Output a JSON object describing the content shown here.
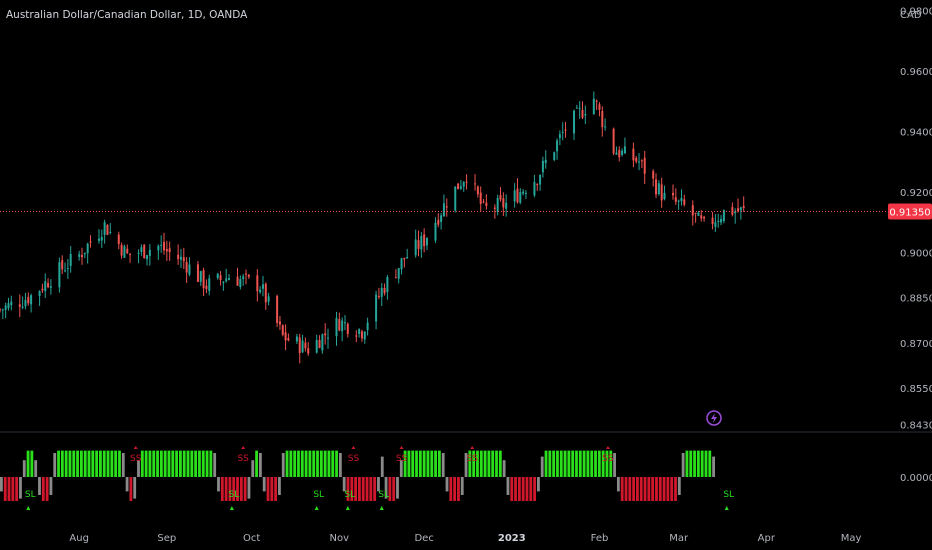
{
  "header": {
    "symbol_title": "Australian Dollar/Canadian Dollar, 1D, OANDA"
  },
  "price_axis": {
    "currency": "CAD",
    "last_price_label": "0.91350",
    "last_price_color": "#f23645"
  },
  "colors": {
    "background": "#000000",
    "candle_up": "#26a69a",
    "candle_down": "#ef5350",
    "hist_green": "#29e01a",
    "hist_red": "#d1172b",
    "hist_gray": "#8a8a8a",
    "signal_ss": "#d1172b",
    "signal_sl": "#29e01a",
    "lightning_badge": "#9c4dd8"
  },
  "icons": {
    "alert_badge": "lightning-icon"
  },
  "chart_data": [
    {
      "type": "candlestick",
      "title": "Australian Dollar/Canadian Dollar, 1D, OANDA",
      "ylabel": "CAD",
      "ylim": [
        0.8405,
        0.9835
      ],
      "xlim": [
        "2022-07-04",
        "2023-05-25"
      ],
      "y_ticks": [
        "0.98000",
        "0.96000",
        "0.94000",
        "0.92000",
        "0.90000",
        "0.88500",
        "0.87000",
        "0.85500",
        "0.84300"
      ],
      "x_ticks": [
        "Aug",
        "Sep",
        "Oct",
        "Nov",
        "Dec",
        "2023",
        "Feb",
        "Mar",
        "Apr",
        "May"
      ],
      "x_tick_dates": [
        "2022-08-01",
        "2022-09-01",
        "2022-10-01",
        "2022-11-01",
        "2022-12-01",
        "2023-01-01",
        "2023-02-01",
        "2023-03-01",
        "2023-04-01",
        "2023-05-01"
      ],
      "last_price": 0.9135,
      "close_path": [
        {
          "date": "2022-07-04",
          "close": 0.881
        },
        {
          "date": "2022-07-15",
          "close": 0.8855
        },
        {
          "date": "2022-07-25",
          "close": 0.894
        },
        {
          "date": "2022-08-01",
          "close": 0.899
        },
        {
          "date": "2022-08-10",
          "close": 0.909
        },
        {
          "date": "2022-08-18",
          "close": 0.899
        },
        {
          "date": "2022-08-29",
          "close": 0.902
        },
        {
          "date": "2022-09-07",
          "close": 0.897
        },
        {
          "date": "2022-09-15",
          "close": 0.889
        },
        {
          "date": "2022-09-23",
          "close": 0.892
        },
        {
          "date": "2022-10-04",
          "close": 0.889
        },
        {
          "date": "2022-10-12",
          "close": 0.872
        },
        {
          "date": "2022-10-21",
          "close": 0.868
        },
        {
          "date": "2022-11-01",
          "close": 0.877
        },
        {
          "date": "2022-11-09",
          "close": 0.874
        },
        {
          "date": "2022-11-16",
          "close": 0.8875
        },
        {
          "date": "2022-11-24",
          "close": 0.898
        },
        {
          "date": "2022-12-01",
          "close": 0.904
        },
        {
          "date": "2022-12-09",
          "close": 0.917
        },
        {
          "date": "2022-12-16",
          "close": 0.926
        },
        {
          "date": "2022-12-22",
          "close": 0.914
        },
        {
          "date": "2022-12-30",
          "close": 0.916
        },
        {
          "date": "2023-01-10",
          "close": 0.925
        },
        {
          "date": "2023-01-20",
          "close": 0.941
        },
        {
          "date": "2023-01-30",
          "close": 0.951
        },
        {
          "date": "2023-02-06",
          "close": 0.934
        },
        {
          "date": "2023-02-15",
          "close": 0.93
        },
        {
          "date": "2023-02-24",
          "close": 0.918
        },
        {
          "date": "2023-03-03",
          "close": 0.915
        },
        {
          "date": "2023-03-10",
          "close": 0.9085
        },
        {
          "date": "2023-03-18",
          "close": 0.914
        },
        {
          "date": "2023-03-24",
          "close": 0.9135
        }
      ]
    },
    {
      "type": "histogram",
      "ylabel": "",
      "ylim": [
        -4,
        3
      ],
      "y_ticks": [
        "0.00000"
      ],
      "states_sequence": "RRRRRRGGGGRRRRGGGGGGGGGGGGGGGGGGGRRRGGGGGGGGGGGGGGGGGGGGGRRRRRRRRRGGGRRRRRGGGGGGGGGGGGGGGGRRRRRRRRRRGRRRRGGGGGGGGGGGGRRRRRGGGGGGGGGGGRRRRRRRRRGGGGGGGGGGGGGGGGGGGGRRRRRRRRRRRRRRRRRGGGGGGGGG",
      "gray_periods": "series of neutral bars at each colour transition",
      "signals": [
        {
          "label": "SS",
          "type": "sell",
          "date": "2022-08-21"
        },
        {
          "label": "SS",
          "type": "sell",
          "date": "2022-09-28"
        },
        {
          "label": "SS",
          "type": "sell",
          "date": "2022-11-06"
        },
        {
          "label": "SS",
          "type": "sell",
          "date": "2022-11-23"
        },
        {
          "label": "SS",
          "type": "sell",
          "date": "2022-12-18"
        },
        {
          "label": "SS",
          "type": "sell",
          "date": "2023-02-04"
        },
        {
          "label": "SL",
          "type": "buy",
          "date": "2022-07-14"
        },
        {
          "label": "SL",
          "type": "buy",
          "date": "2022-09-24"
        },
        {
          "label": "SL",
          "type": "buy",
          "date": "2022-10-24"
        },
        {
          "label": "SL",
          "type": "buy",
          "date": "2022-11-04"
        },
        {
          "label": "SL",
          "type": "buy",
          "date": "2022-11-16"
        },
        {
          "label": "SL",
          "type": "buy",
          "date": "2023-03-18"
        }
      ]
    }
  ]
}
